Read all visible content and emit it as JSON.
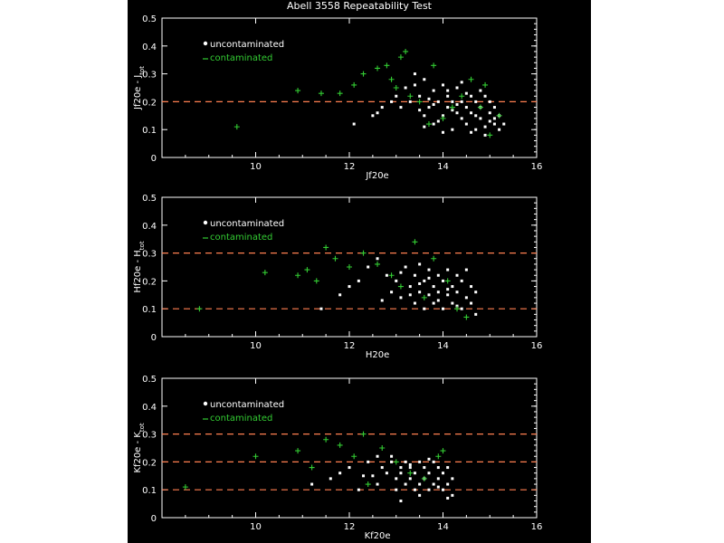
{
  "title": "Abell 3558 Repeatability Test",
  "colors": {
    "background": "#000000",
    "axes": "#ffffff",
    "uncontaminated": "#ffffff",
    "contaminated": "#33cc33",
    "reference_lines": "#ff7f50"
  },
  "legend": {
    "uncontaminated": "uncontaminated",
    "contaminated": "contaminated"
  },
  "chart_data": [
    {
      "type": "scatter",
      "xlabel": "Jf20e",
      "ylabel_main": "Jf20e",
      "ylabel_sub": "tot",
      "ylabel_letter": "J",
      "xlim": [
        8,
        16
      ],
      "ylim": [
        0,
        0.5
      ],
      "xticks": [
        "10",
        "12",
        "14",
        "16"
      ],
      "yticks": [
        "0",
        "0.1",
        "0.2",
        "0.3",
        "0.4",
        "0.5"
      ],
      "ref_lines": [
        0.2
      ],
      "series": [
        {
          "name": "uncontaminated",
          "x": [
            12.1,
            12.5,
            12.6,
            12.7,
            12.9,
            13.0,
            13.1,
            13.2,
            13.3,
            13.4,
            13.5,
            13.6,
            13.6,
            13.7,
            13.8,
            13.8,
            13.9,
            14.0,
            14.0,
            14.1,
            14.1,
            14.2,
            14.2,
            14.3,
            14.3,
            14.4,
            14.4,
            14.5,
            14.5,
            14.6,
            14.6,
            14.7,
            14.7,
            14.8,
            14.8,
            14.9,
            14.9,
            15.0,
            15.0,
            15.1,
            15.1,
            15.2,
            15.2,
            15.3,
            13.5,
            13.7,
            13.9,
            14.1,
            14.3,
            14.5,
            14.7,
            14.9,
            15.1,
            14.0,
            14.2,
            14.4,
            14.6,
            14.8,
            15.0,
            13.4,
            13.6,
            13.8
          ],
          "y": [
            0.12,
            0.15,
            0.16,
            0.18,
            0.2,
            0.22,
            0.18,
            0.25,
            0.2,
            0.26,
            0.22,
            0.15,
            0.28,
            0.18,
            0.24,
            0.12,
            0.2,
            0.15,
            0.26,
            0.18,
            0.22,
            0.1,
            0.2,
            0.16,
            0.25,
            0.14,
            0.2,
            0.18,
            0.12,
            0.22,
            0.16,
            0.2,
            0.1,
            0.18,
            0.14,
            0.22,
            0.08,
            0.16,
            0.2,
            0.12,
            0.18,
            0.1,
            0.15,
            0.12,
            0.17,
            0.21,
            0.13,
            0.24,
            0.19,
            0.23,
            0.15,
            0.11,
            0.14,
            0.09,
            0.17,
            0.27,
            0.09,
            0.24,
            0.13,
            0.3,
            0.11,
            0.19
          ]
        },
        {
          "name": "contaminated",
          "x": [
            9.6,
            10.9,
            11.4,
            11.8,
            12.1,
            12.3,
            12.6,
            12.8,
            12.9,
            13.0,
            13.2,
            13.3,
            13.5,
            13.8,
            14.0,
            14.4,
            14.6,
            14.8,
            15.0,
            15.2,
            13.1,
            13.7,
            14.2,
            14.9
          ],
          "y": [
            0.11,
            0.24,
            0.23,
            0.23,
            0.26,
            0.3,
            0.32,
            0.33,
            0.28,
            0.25,
            0.38,
            0.22,
            0.2,
            0.33,
            0.14,
            0.22,
            0.28,
            0.18,
            0.08,
            0.15,
            0.36,
            0.12,
            0.18,
            0.26
          ]
        }
      ]
    },
    {
      "type": "scatter",
      "xlabel": "H20e",
      "ylabel_main": "Hf20e",
      "ylabel_sub": "tot",
      "ylabel_letter": "H",
      "xlim": [
        8,
        16
      ],
      "ylim": [
        0,
        0.5
      ],
      "xticks": [
        "10",
        "12",
        "14",
        "16"
      ],
      "yticks": [
        "0",
        "0.1",
        "0.2",
        "0.3",
        "0.4",
        "0.5"
      ],
      "ref_lines": [
        0.1,
        0.3
      ],
      "series": [
        {
          "name": "uncontaminated",
          "x": [
            11.4,
            11.8,
            12.0,
            12.2,
            12.4,
            12.6,
            12.8,
            12.9,
            13.0,
            13.1,
            13.2,
            13.3,
            13.4,
            13.4,
            13.5,
            13.5,
            13.6,
            13.6,
            13.7,
            13.7,
            13.8,
            13.8,
            13.9,
            13.9,
            14.0,
            14.0,
            14.1,
            14.1,
            14.2,
            14.2,
            14.3,
            14.3,
            14.4,
            14.4,
            14.5,
            14.5,
            14.6,
            14.6,
            14.7,
            14.7,
            13.3,
            13.5,
            13.7,
            13.9,
            14.1,
            14.3,
            12.7,
            13.1
          ],
          "y": [
            0.1,
            0.15,
            0.18,
            0.2,
            0.25,
            0.28,
            0.22,
            0.16,
            0.2,
            0.14,
            0.25,
            0.18,
            0.22,
            0.12,
            0.16,
            0.26,
            0.2,
            0.1,
            0.15,
            0.24,
            0.18,
            0.12,
            0.22,
            0.16,
            0.2,
            0.1,
            0.15,
            0.24,
            0.18,
            0.12,
            0.22,
            0.16,
            0.2,
            0.1,
            0.14,
            0.24,
            0.18,
            0.12,
            0.08,
            0.16,
            0.15,
            0.19,
            0.21,
            0.13,
            0.17,
            0.11,
            0.13,
            0.23
          ]
        },
        {
          "name": "contaminated",
          "x": [
            8.8,
            10.2,
            10.9,
            11.1,
            11.3,
            11.5,
            11.7,
            12.0,
            12.3,
            12.6,
            12.9,
            13.1,
            13.4,
            13.6,
            13.8,
            14.1,
            14.3,
            14.5
          ],
          "y": [
            0.1,
            0.23,
            0.22,
            0.24,
            0.2,
            0.32,
            0.28,
            0.25,
            0.3,
            0.26,
            0.22,
            0.18,
            0.34,
            0.14,
            0.28,
            0.2,
            0.1,
            0.07
          ]
        }
      ]
    },
    {
      "type": "scatter",
      "xlabel": "Kf20e",
      "ylabel_main": "Kf20e",
      "ylabel_sub": "tot",
      "ylabel_letter": "K",
      "xlim": [
        8,
        16
      ],
      "ylim": [
        0,
        0.5
      ],
      "xticks": [
        "10",
        "12",
        "14",
        "16"
      ],
      "yticks": [
        "0",
        "0.1",
        "0.2",
        "0.3",
        "0.4",
        "0.5"
      ],
      "ref_lines": [
        0.1,
        0.2,
        0.3
      ],
      "series": [
        {
          "name": "uncontaminated",
          "x": [
            11.2,
            11.6,
            11.8,
            12.0,
            12.2,
            12.4,
            12.5,
            12.6,
            12.7,
            12.8,
            12.9,
            13.0,
            13.0,
            13.1,
            13.1,
            13.2,
            13.2,
            13.3,
            13.3,
            13.4,
            13.4,
            13.5,
            13.5,
            13.6,
            13.6,
            13.7,
            13.7,
            13.8,
            13.8,
            13.9,
            13.9,
            14.0,
            14.0,
            14.1,
            14.1,
            14.2,
            14.2,
            12.9,
            13.1,
            13.3,
            13.5,
            13.7,
            13.9,
            14.1,
            12.3,
            12.6
          ],
          "y": [
            0.12,
            0.14,
            0.16,
            0.18,
            0.1,
            0.2,
            0.15,
            0.12,
            0.18,
            0.16,
            0.2,
            0.14,
            0.1,
            0.18,
            0.16,
            0.12,
            0.2,
            0.14,
            0.18,
            0.1,
            0.16,
            0.2,
            0.12,
            0.14,
            0.18,
            0.16,
            0.1,
            0.2,
            0.12,
            0.14,
            0.18,
            0.16,
            0.1,
            0.12,
            0.18,
            0.14,
            0.08,
            0.22,
            0.06,
            0.19,
            0.08,
            0.21,
            0.11,
            0.07,
            0.15,
            0.22
          ]
        },
        {
          "name": "contaminated",
          "x": [
            8.5,
            10.0,
            10.9,
            11.2,
            11.5,
            11.8,
            12.1,
            12.4,
            12.7,
            13.0,
            13.3,
            13.6,
            13.9,
            14.0,
            12.3
          ],
          "y": [
            0.11,
            0.22,
            0.24,
            0.18,
            0.28,
            0.26,
            0.22,
            0.12,
            0.25,
            0.2,
            0.16,
            0.14,
            0.22,
            0.24,
            0.3
          ]
        }
      ]
    }
  ]
}
